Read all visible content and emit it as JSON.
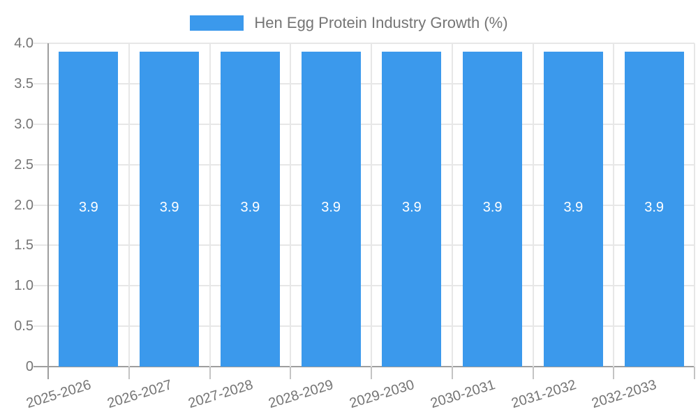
{
  "chart_data": {
    "type": "bar",
    "title": "Hen Egg Protein Industry Growth (%)",
    "series_name": "Hen Egg Protein Industry Growth (%)",
    "categories": [
      "2025-2026",
      "2026-2027",
      "2027-2028",
      "2028-2029",
      "2029-2030",
      "2030-2031",
      "2031-2032",
      "2032-2033"
    ],
    "values": [
      3.9,
      3.9,
      3.9,
      3.9,
      3.9,
      3.9,
      3.9,
      3.9
    ],
    "xlabel": "",
    "ylabel": "",
    "ylim": [
      0,
      4
    ],
    "yticks": [
      {
        "value": 0,
        "label": "0"
      },
      {
        "value": 0.5,
        "label": "0.5"
      },
      {
        "value": 1,
        "label": "1.0"
      },
      {
        "value": 1.5,
        "label": "1.5"
      },
      {
        "value": 2,
        "label": "2.0"
      },
      {
        "value": 2.5,
        "label": "2.5"
      },
      {
        "value": 3,
        "label": "3.0"
      },
      {
        "value": 3.5,
        "label": "3.5"
      },
      {
        "value": 4,
        "label": "4.0"
      }
    ],
    "grid": true,
    "legend_position": "top",
    "colors": {
      "bar": "#3B99EC",
      "axis": "#9E9E9E",
      "gridline": "#E7E7E7",
      "tick": "#C4C4C4",
      "label_text": "#757575",
      "bar_label_text": "#FFFFFF",
      "background": "#FFFFFF"
    }
  }
}
